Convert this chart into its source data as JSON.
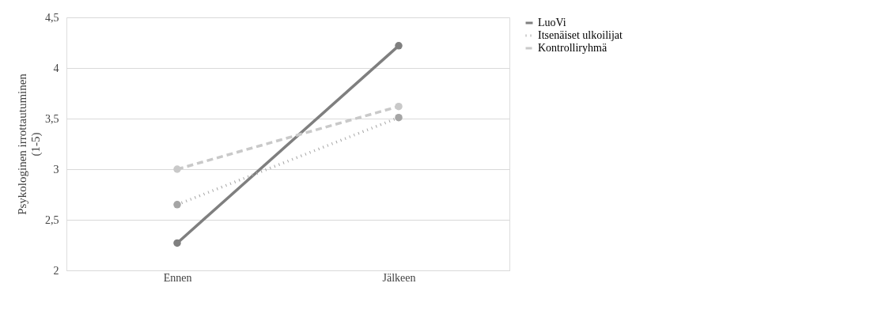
{
  "chart_data": {
    "type": "line",
    "ylabel": "Psykologinen irrottautuminen (1-5)",
    "categories": [
      "Ennen",
      "Jälkeen"
    ],
    "series": [
      {
        "name": "LuoVi",
        "color": "#7f7f7f",
        "values": [
          2.27,
          4.22
        ],
        "line_style": "solid"
      },
      {
        "name": "Itsenäiset ulkoilijat",
        "color": "#a5a5a5",
        "values": [
          2.65,
          3.51
        ],
        "line_style": "dotted"
      },
      {
        "name": "Kontrolliryhmä",
        "color": "#c9c9c9",
        "values": [
          3.0,
          3.62
        ],
        "line_style": "dashed"
      }
    ],
    "ylim": [
      2,
      4.5
    ],
    "yticks": [
      2,
      {
        "value": 2.5,
        "label": "2,5"
      },
      3,
      {
        "value": 3.5,
        "label": "3,5"
      },
      4,
      {
        "value": 4.5,
        "label": "4,5"
      }
    ],
    "grid": "y",
    "legend": "right",
    "marker": "circle"
  }
}
